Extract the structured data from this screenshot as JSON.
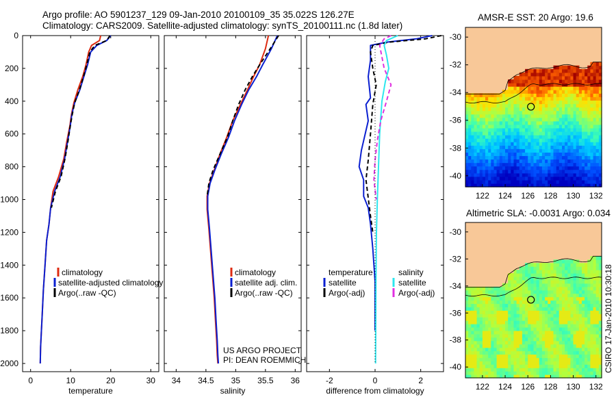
{
  "header": {
    "line1": "Argo profile: AO 5901237_129 09-Jan-2010 20100109_35 35.022S 126.27E",
    "line2": "Climatology: CARS2009. Satellite-adjusted climatology: synTS_20100111.nc (1.8d later)"
  },
  "colors": {
    "climatology": "#dd2a10",
    "satellite": "#0a1fd0",
    "argo": "#000000",
    "sal_satellite": "#2ce6ee",
    "sal_argo": "#e030e0",
    "land": "#f8c898"
  },
  "chart_data": [
    {
      "type": "line",
      "id": "temperature",
      "xlabel": "temperature",
      "xlim": [
        -2,
        32
      ],
      "ylim": [
        2050,
        0
      ],
      "xticks": [
        "0",
        "10",
        "20",
        "30"
      ],
      "yticks": [
        "0",
        "200",
        "400",
        "600",
        "800",
        "1000",
        "1200",
        "1400",
        "1600",
        "1800",
        "2000"
      ],
      "legend": [
        "climatology",
        "satellite-adjusted climatology",
        "Argo(..raw -QC)"
      ],
      "series": [
        {
          "name": "climatology",
          "color": "#dd2a10",
          "dash": "",
          "x": [
            17.5,
            17.2,
            15.2,
            14.5,
            13.8,
            13.0,
            11.8,
            10.8,
            10.2,
            9.8,
            9.0,
            8.3,
            7.0,
            5.6,
            5.0,
            4.6,
            4.0,
            3.6,
            3.2,
            2.9,
            2.7,
            2.5,
            2.4
          ],
          "y": [
            0,
            30,
            60,
            100,
            180,
            250,
            330,
            410,
            480,
            550,
            650,
            750,
            860,
            950,
            1050,
            1150,
            1250,
            1400,
            1550,
            1700,
            1800,
            1900,
            2000
          ]
        },
        {
          "name": "satellite-adjusted climatology",
          "color": "#0a1fd0",
          "dash": "",
          "x": [
            20.0,
            19.0,
            16.5,
            15.0,
            14.2,
            13.3,
            12.3,
            11.0,
            10.3,
            9.9,
            9.2,
            8.5,
            7.4,
            6.0,
            5.0,
            4.6,
            4.0,
            3.6,
            3.2,
            2.9,
            2.7,
            2.5,
            2.4
          ],
          "y": [
            0,
            30,
            60,
            100,
            180,
            250,
            330,
            410,
            480,
            550,
            650,
            750,
            860,
            950,
            1050,
            1150,
            1250,
            1400,
            1550,
            1700,
            1800,
            1900,
            2000
          ]
        },
        {
          "name": "Argo(..raw -QC)",
          "color": "#000000",
          "dash": "6,4",
          "x": [
            19.8,
            19.0,
            16.0,
            14.8,
            14.0,
            13.2,
            12.2,
            11.0,
            10.4,
            9.9,
            9.3,
            8.6,
            7.6,
            6.2,
            5.2
          ],
          "y": [
            0,
            30,
            60,
            100,
            180,
            250,
            330,
            410,
            480,
            550,
            650,
            750,
            860,
            950,
            1050
          ]
        }
      ],
      "annotations": []
    },
    {
      "type": "line",
      "id": "salinity",
      "xlabel": "salinity",
      "xlim": [
        33.8,
        36.1
      ],
      "ylim": [
        2050,
        0
      ],
      "xticks": [
        "34",
        "34.5",
        "35",
        "35.5",
        "36"
      ],
      "yticks": [],
      "legend": [
        "climatology",
        "satellite adj. clim.",
        "Argo(..raw -QC)"
      ],
      "series": [
        {
          "name": "climatology",
          "color": "#dd2a10",
          "dash": "",
          "x": [
            35.55,
            35.5,
            35.4,
            35.3,
            35.2,
            35.08,
            34.95,
            34.85,
            34.74,
            34.64,
            34.56,
            34.52,
            34.52,
            34.55,
            34.58,
            34.61,
            34.64,
            34.66,
            34.68,
            34.69,
            34.7
          ],
          "y": [
            0,
            80,
            180,
            250,
            330,
            420,
            520,
            620,
            720,
            820,
            900,
            980,
            1060,
            1180,
            1320,
            1460,
            1600,
            1740,
            1860,
            1950,
            2000
          ]
        },
        {
          "name": "satellite adj. clim.",
          "color": "#0a1fd0",
          "dash": "",
          "x": [
            35.7,
            35.6,
            35.45,
            35.35,
            35.22,
            35.1,
            34.98,
            34.88,
            34.76,
            34.65,
            34.57,
            34.53,
            34.53,
            34.56,
            34.59,
            34.62,
            34.65,
            34.67,
            34.69,
            34.7,
            34.71
          ],
          "y": [
            0,
            80,
            180,
            250,
            330,
            420,
            520,
            620,
            720,
            820,
            900,
            980,
            1060,
            1180,
            1320,
            1460,
            1600,
            1740,
            1860,
            1950,
            2000
          ]
        },
        {
          "name": "Argo(..raw -QC)",
          "color": "#000000",
          "dash": "6,4",
          "x": [
            35.72,
            35.58,
            35.4,
            35.28,
            35.16,
            35.05,
            34.95,
            34.86,
            34.74,
            34.62,
            34.55,
            34.52
          ],
          "y": [
            0,
            80,
            180,
            250,
            330,
            420,
            520,
            620,
            720,
            820,
            900,
            980
          ]
        }
      ],
      "annotations": [
        "US ARGO PROJECT",
        "PI: DEAN ROEMMICH"
      ]
    },
    {
      "type": "line",
      "id": "difference",
      "xlabel": "difference from climatology",
      "xlim": [
        -3,
        3
      ],
      "ylim": [
        2050,
        0
      ],
      "xticks": [
        "-2",
        "0",
        "2"
      ],
      "yticks": [],
      "legend_left": [
        "temperature",
        "satellite",
        "Argo(-adj)"
      ],
      "legend_right": [
        "salinity",
        "satellite",
        "Argo(-adj)"
      ],
      "series": [
        {
          "name": "temperature satellite",
          "color": "#0a1fd0",
          "dash": "",
          "x": [
            2.5,
            1.8,
            0.5,
            -0.2,
            -0.2,
            -0.3,
            -0.2,
            -0.4,
            -0.3,
            -0.6,
            -0.7,
            -0.5,
            -0.5,
            -0.3,
            -0.2,
            -0.1,
            0.0,
            0.0
          ],
          "y": [
            0,
            20,
            40,
            60,
            150,
            250,
            380,
            420,
            520,
            700,
            800,
            880,
            980,
            1050,
            1150,
            1300,
            1500,
            1800
          ]
        },
        {
          "name": "temperature Argo(-adj)",
          "color": "#000000",
          "dash": "6,4",
          "x": [
            2.9,
            2.2,
            0.6,
            -0.1,
            -0.2,
            -0.1,
            0.05,
            -0.1,
            -0.2,
            -0.3,
            -0.4,
            -0.3,
            -0.2,
            -0.1
          ],
          "y": [
            0,
            20,
            40,
            60,
            100,
            200,
            300,
            420,
            600,
            760,
            880,
            990,
            1100,
            1200
          ]
        },
        {
          "name": "salinity satellite",
          "color": "#2ce6ee",
          "dash": "",
          "x": [
            1.0,
            0.5,
            0.4,
            0.5,
            0.6,
            0.45,
            0.3,
            0.2,
            0.15,
            0.1,
            0.06,
            0.04,
            0.03,
            0.02
          ],
          "y": [
            0,
            30,
            60,
            120,
            200,
            280,
            400,
            600,
            800,
            1000,
            1200,
            1500,
            1800,
            2000
          ]
        },
        {
          "name": "salinity Argo(-adj)",
          "color": "#e030e0",
          "dash": "6,4",
          "x": [
            0.7,
            0.4,
            0.2,
            0.4,
            0.7,
            0.5,
            0.25,
            0.1,
            0.0,
            -0.05,
            0.05
          ],
          "y": [
            0,
            20,
            60,
            200,
            300,
            400,
            520,
            640,
            760,
            880,
            1000
          ]
        },
        {
          "name": "zero reference",
          "color": "#000000",
          "dash": "1,3",
          "x": [
            0,
            0
          ],
          "y": [
            0,
            2000
          ]
        }
      ],
      "annotations": []
    },
    {
      "type": "heatmap",
      "id": "sst_map",
      "title": "AMSR-E SST: 20 Argo: 19.6",
      "xlim": [
        120.5,
        132.5
      ],
      "ylim": [
        -40.8,
        -29.3
      ],
      "xticks": [
        "122",
        "124",
        "126",
        "128",
        "130",
        "132"
      ],
      "yticks": [
        "-30",
        "-32",
        "-34",
        "-36",
        "-38",
        "-40"
      ],
      "profile_marker": {
        "lon": 126.27,
        "lat": -35.022
      }
    },
    {
      "type": "heatmap",
      "id": "sla_map",
      "title": "Altimetric SLA: -0.0031 Argo: 0.034",
      "xlim": [
        120.5,
        132.5
      ],
      "ylim": [
        -40.8,
        -29.3
      ],
      "xticks": [
        "122",
        "124",
        "126",
        "128",
        "130",
        "132"
      ],
      "yticks": [
        "-30",
        "-32",
        "-34",
        "-36",
        "-38",
        "-40"
      ],
      "profile_marker": {
        "lon": 126.27,
        "lat": -35.022
      }
    }
  ],
  "credit": "CSIRO 17-Jan-2010 10:30:18"
}
